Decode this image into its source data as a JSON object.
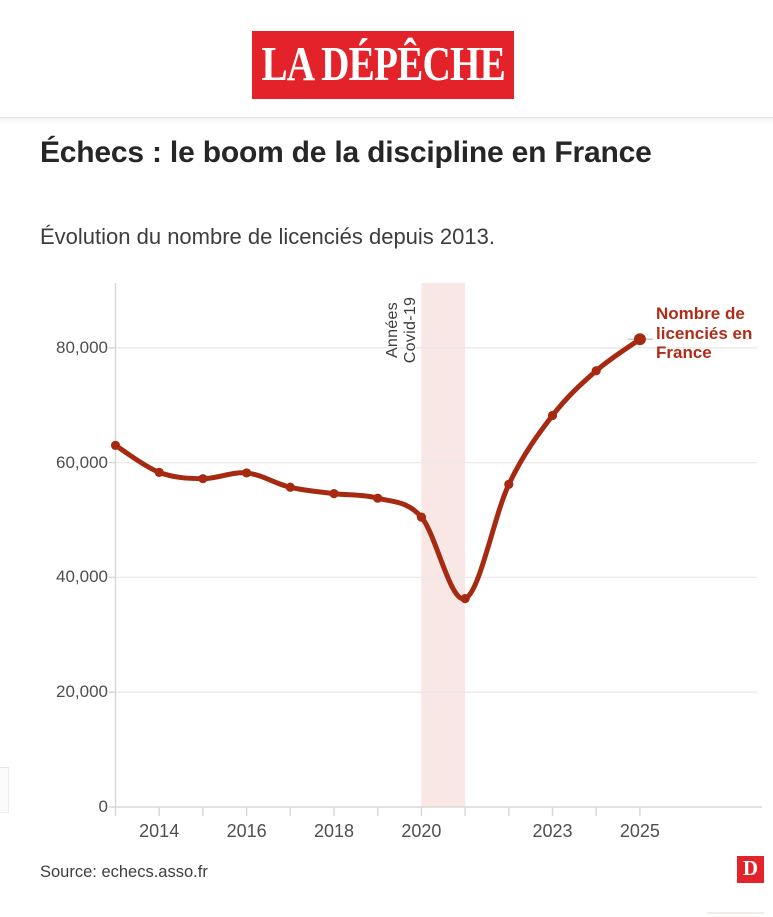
{
  "header": {
    "logo_text": "LA DÉPÊCHE",
    "logo_bg": "#e42229"
  },
  "article": {
    "title": "Échecs : le boom de la discipline en France",
    "subtitle": "Évolution du nombre de licenciés depuis 2013."
  },
  "chart_data": {
    "type": "line",
    "title": "Échecs : le boom de la discipline en France",
    "subtitle": "Évolution du nombre de licenciés depuis 2013.",
    "x": [
      2013,
      2014,
      2015,
      2016,
      2017,
      2018,
      2019,
      2020,
      2021,
      2022,
      2023,
      2024,
      2025
    ],
    "series": [
      {
        "name": "Nombre de licenciés en France",
        "values": [
          63000,
          58300,
          57200,
          58200,
          55700,
          54600,
          53800,
          50500,
          36300,
          56200,
          68200,
          76000,
          81500
        ]
      }
    ],
    "series_label": "Nombre de\nlicenciés en\nFrance",
    "series_label_color": "#b02d1a",
    "line_color": "#a62a12",
    "dot_color": "#a62a12",
    "xlabel": "",
    "ylabel": "",
    "xlim": [
      2013,
      2025
    ],
    "ylim": [
      0,
      91000
    ],
    "grid": true,
    "grid_color": "#e9e9e9",
    "axis_color": "#d9d9d9",
    "y_ticks": [
      0,
      20000,
      40000,
      60000,
      80000
    ],
    "y_tick_labels": [
      "0",
      "20,000",
      "40,000",
      "60,000",
      "80,000"
    ],
    "x_axis_tick_years": [
      2013,
      2014,
      2015,
      2016,
      2017,
      2018,
      2019,
      2020,
      2021,
      2022,
      2023,
      2024,
      2025
    ],
    "x_tick_labels": [
      {
        "year": 2014,
        "label": "2014"
      },
      {
        "year": 2016,
        "label": "2016"
      },
      {
        "year": 2018,
        "label": "2018"
      },
      {
        "year": 2020,
        "label": "2020"
      },
      {
        "year": 2023,
        "label": "2023"
      },
      {
        "year": 2025,
        "label": "2025"
      }
    ],
    "band": {
      "from": 2020,
      "to": 2021,
      "label": "Années\nCovid-19",
      "color": "#f9e7e5",
      "label_color": "#3d3d3d"
    }
  },
  "footer": {
    "source": "Source: echecs.asso.fr",
    "logo_letter": "D"
  }
}
